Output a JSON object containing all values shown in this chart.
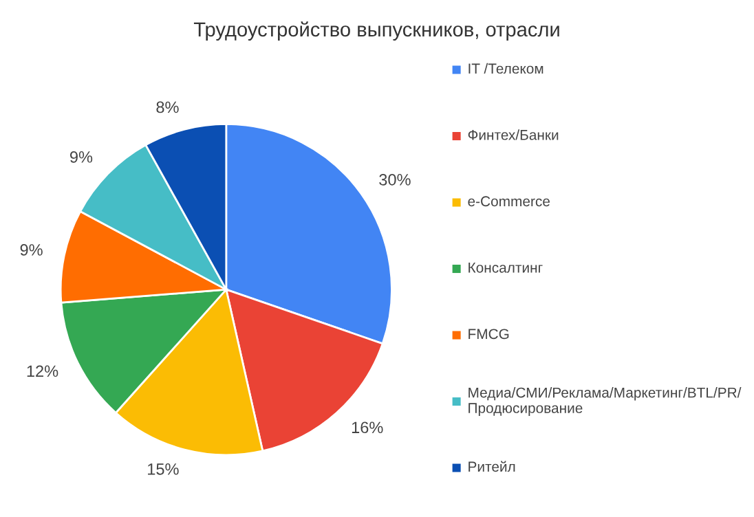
{
  "chart_data": {
    "type": "pie",
    "title": "Трудоустройство выпускников, отрасли",
    "categories": [
      "IT /Телеком",
      "Финтех/Банки",
      "e-Commerce",
      "Консалтинг",
      "FMCG",
      "Медиа/СМИ/Реклама/Маркетинг/BTL/PR/ Продюсирование",
      "Ритейл"
    ],
    "values": [
      30,
      16,
      15,
      12,
      9,
      9,
      8
    ],
    "colors": [
      "#4285f4",
      "#ea4335",
      "#fbbc04",
      "#34a853",
      "#ff6d01",
      "#46bdc6",
      "#0b4fb3"
    ],
    "value_labels": [
      "30%",
      "16%",
      "15%",
      "12%",
      "9%",
      "9%",
      "8%"
    ],
    "legend": "right"
  }
}
